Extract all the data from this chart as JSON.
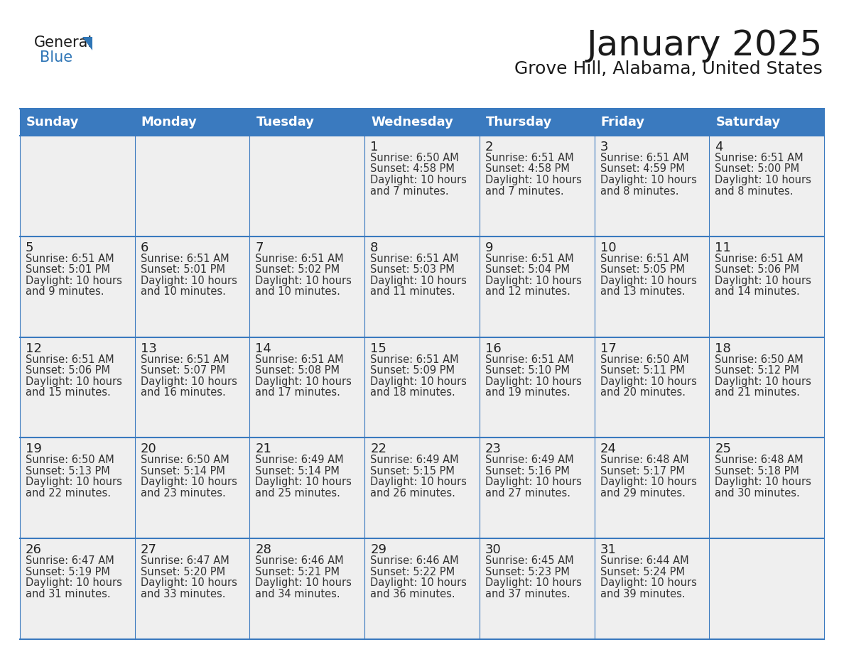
{
  "title": "January 2025",
  "subtitle": "Grove Hill, Alabama, United States",
  "days_of_week": [
    "Sunday",
    "Monday",
    "Tuesday",
    "Wednesday",
    "Thursday",
    "Friday",
    "Saturday"
  ],
  "header_bg": "#3A7ABF",
  "header_text": "#FFFFFF",
  "cell_bg_gray": "#EFEFEF",
  "cell_bg_white": "#FFFFFF",
  "border_color": "#3A7ABF",
  "row_divider_color": "#3A7ABF",
  "text_color": "#333333",
  "day_number_color": "#222222",
  "calendar_data": [
    [
      null,
      null,
      null,
      {
        "day": 1,
        "sunrise": "6:50 AM",
        "sunset": "4:58 PM",
        "daylight": "10 hours and 7 minutes."
      },
      {
        "day": 2,
        "sunrise": "6:51 AM",
        "sunset": "4:58 PM",
        "daylight": "10 hours and 7 minutes."
      },
      {
        "day": 3,
        "sunrise": "6:51 AM",
        "sunset": "4:59 PM",
        "daylight": "10 hours and 8 minutes."
      },
      {
        "day": 4,
        "sunrise": "6:51 AM",
        "sunset": "5:00 PM",
        "daylight": "10 hours and 8 minutes."
      }
    ],
    [
      {
        "day": 5,
        "sunrise": "6:51 AM",
        "sunset": "5:01 PM",
        "daylight": "10 hours and 9 minutes."
      },
      {
        "day": 6,
        "sunrise": "6:51 AM",
        "sunset": "5:01 PM",
        "daylight": "10 hours and 10 minutes."
      },
      {
        "day": 7,
        "sunrise": "6:51 AM",
        "sunset": "5:02 PM",
        "daylight": "10 hours and 10 minutes."
      },
      {
        "day": 8,
        "sunrise": "6:51 AM",
        "sunset": "5:03 PM",
        "daylight": "10 hours and 11 minutes."
      },
      {
        "day": 9,
        "sunrise": "6:51 AM",
        "sunset": "5:04 PM",
        "daylight": "10 hours and 12 minutes."
      },
      {
        "day": 10,
        "sunrise": "6:51 AM",
        "sunset": "5:05 PM",
        "daylight": "10 hours and 13 minutes."
      },
      {
        "day": 11,
        "sunrise": "6:51 AM",
        "sunset": "5:06 PM",
        "daylight": "10 hours and 14 minutes."
      }
    ],
    [
      {
        "day": 12,
        "sunrise": "6:51 AM",
        "sunset": "5:06 PM",
        "daylight": "10 hours and 15 minutes."
      },
      {
        "day": 13,
        "sunrise": "6:51 AM",
        "sunset": "5:07 PM",
        "daylight": "10 hours and 16 minutes."
      },
      {
        "day": 14,
        "sunrise": "6:51 AM",
        "sunset": "5:08 PM",
        "daylight": "10 hours and 17 minutes."
      },
      {
        "day": 15,
        "sunrise": "6:51 AM",
        "sunset": "5:09 PM",
        "daylight": "10 hours and 18 minutes."
      },
      {
        "day": 16,
        "sunrise": "6:51 AM",
        "sunset": "5:10 PM",
        "daylight": "10 hours and 19 minutes."
      },
      {
        "day": 17,
        "sunrise": "6:50 AM",
        "sunset": "5:11 PM",
        "daylight": "10 hours and 20 minutes."
      },
      {
        "day": 18,
        "sunrise": "6:50 AM",
        "sunset": "5:12 PM",
        "daylight": "10 hours and 21 minutes."
      }
    ],
    [
      {
        "day": 19,
        "sunrise": "6:50 AM",
        "sunset": "5:13 PM",
        "daylight": "10 hours and 22 minutes."
      },
      {
        "day": 20,
        "sunrise": "6:50 AM",
        "sunset": "5:14 PM",
        "daylight": "10 hours and 23 minutes."
      },
      {
        "day": 21,
        "sunrise": "6:49 AM",
        "sunset": "5:14 PM",
        "daylight": "10 hours and 25 minutes."
      },
      {
        "day": 22,
        "sunrise": "6:49 AM",
        "sunset": "5:15 PM",
        "daylight": "10 hours and 26 minutes."
      },
      {
        "day": 23,
        "sunrise": "6:49 AM",
        "sunset": "5:16 PM",
        "daylight": "10 hours and 27 minutes."
      },
      {
        "day": 24,
        "sunrise": "6:48 AM",
        "sunset": "5:17 PM",
        "daylight": "10 hours and 29 minutes."
      },
      {
        "day": 25,
        "sunrise": "6:48 AM",
        "sunset": "5:18 PM",
        "daylight": "10 hours and 30 minutes."
      }
    ],
    [
      {
        "day": 26,
        "sunrise": "6:47 AM",
        "sunset": "5:19 PM",
        "daylight": "10 hours and 31 minutes."
      },
      {
        "day": 27,
        "sunrise": "6:47 AM",
        "sunset": "5:20 PM",
        "daylight": "10 hours and 33 minutes."
      },
      {
        "day": 28,
        "sunrise": "6:46 AM",
        "sunset": "5:21 PM",
        "daylight": "10 hours and 34 minutes."
      },
      {
        "day": 29,
        "sunrise": "6:46 AM",
        "sunset": "5:22 PM",
        "daylight": "10 hours and 36 minutes."
      },
      {
        "day": 30,
        "sunrise": "6:45 AM",
        "sunset": "5:23 PM",
        "daylight": "10 hours and 37 minutes."
      },
      {
        "day": 31,
        "sunrise": "6:44 AM",
        "sunset": "5:24 PM",
        "daylight": "10 hours and 39 minutes."
      },
      null
    ]
  ],
  "logo_triangle_color": "#2E75B6",
  "title_fontsize": 36,
  "subtitle_fontsize": 18,
  "header_fontsize": 13,
  "day_number_fontsize": 13,
  "info_fontsize": 10.5
}
